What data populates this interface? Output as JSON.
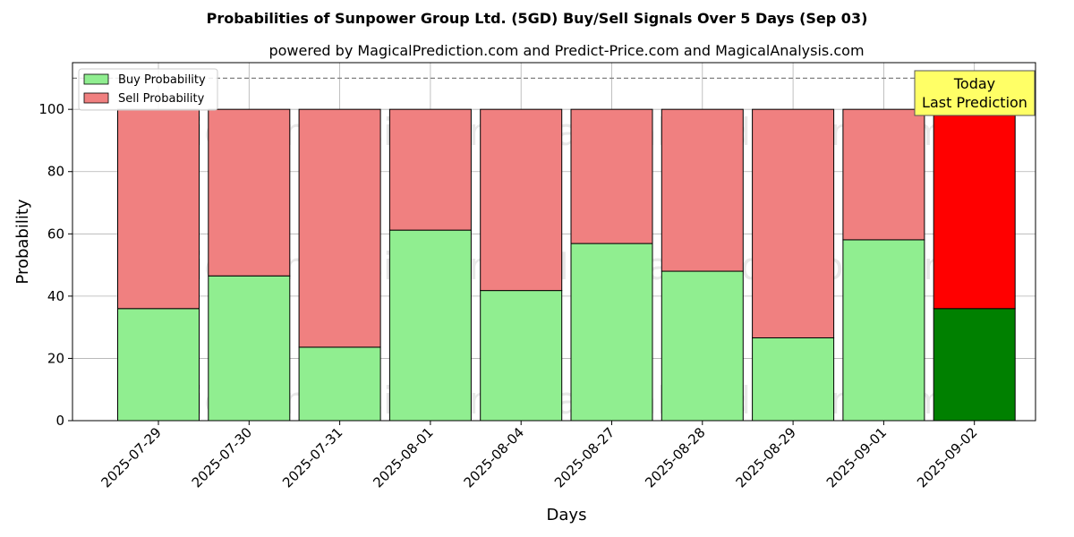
{
  "chart_data": {
    "type": "bar",
    "stacked": true,
    "title": "Probabilities of Sunpower Group Ltd. (5GD) Buy/Sell Signals Over 5 Days (Sep 03)",
    "subtitle": "powered by MagicalPrediction.com and Predict-Price.com and MagicalAnalysis.com",
    "xlabel": "Days",
    "ylabel": "Probability",
    "ylim": [
      0,
      115
    ],
    "yticks": [
      0,
      20,
      40,
      60,
      80,
      100
    ],
    "grid": true,
    "legend_position": "top-left",
    "categories": [
      "2025-07-29",
      "2025-07-30",
      "2025-07-31",
      "2025-08-01",
      "2025-08-04",
      "2025-08-27",
      "2025-08-28",
      "2025-08-29",
      "2025-09-01",
      "2025-09-02"
    ],
    "series": [
      {
        "name": "Buy Probability",
        "color": "#90ee90",
        "values": [
          36.0,
          46.5,
          23.6,
          61.2,
          41.8,
          56.9,
          48.0,
          26.6,
          58.1,
          36.0
        ]
      },
      {
        "name": "Sell Probability",
        "color": "#f08080",
        "values": [
          64.0,
          53.5,
          76.4,
          38.8,
          58.2,
          43.1,
          52.0,
          73.4,
          41.9,
          64.0
        ]
      }
    ],
    "highlight": {
      "index": 9,
      "buy_color": "#008000",
      "sell_color": "#ff0000"
    },
    "reference_line": {
      "y": 110,
      "style": "dashed",
      "color": "#808080"
    },
    "annotation": {
      "lines": [
        "Today",
        "Last Prediction"
      ],
      "background": "#ffff66"
    },
    "watermarks": [
      "MagicalAnalysis.com",
      "MagicalPrediction.com"
    ]
  }
}
